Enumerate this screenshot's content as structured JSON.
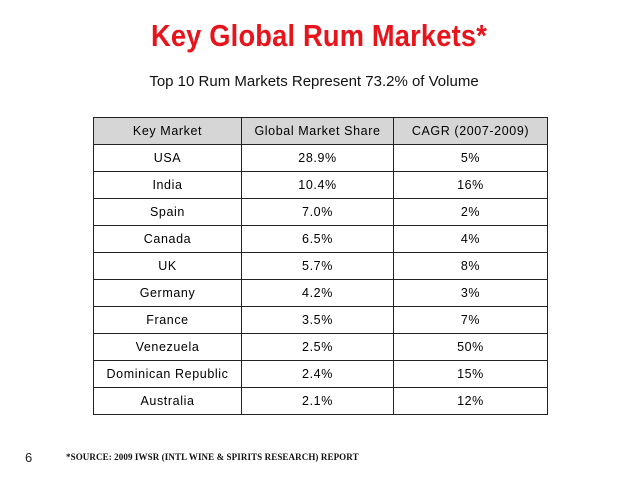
{
  "slide": {
    "title": "Key Global Rum Markets*",
    "subtitle": "Top 10 Rum Markets Represent 73.2% of Volume",
    "page_number": "6",
    "source": "*SOURCE: 2009 IWSR (INTL WINE & SPIRITS RESEARCH) REPORT",
    "title_color": "#e8141c",
    "header_bg": "#d6d6d6"
  },
  "table": {
    "headers": [
      "Key Market",
      "Global Market Share",
      "CAGR (2007-2009)"
    ],
    "rows": [
      [
        "USA",
        "28.9%",
        "5%"
      ],
      [
        "India",
        "10.4%",
        "16%"
      ],
      [
        "Spain",
        "7.0%",
        "2%"
      ],
      [
        "Canada",
        "6.5%",
        "4%"
      ],
      [
        "UK",
        "5.7%",
        "8%"
      ],
      [
        "Germany",
        "4.2%",
        "3%"
      ],
      [
        "France",
        "3.5%",
        "7%"
      ],
      [
        "Venezuela",
        "2.5%",
        "50%"
      ],
      [
        "Dominican Republic",
        "2.4%",
        "15%"
      ],
      [
        "Australia",
        "2.1%",
        "12%"
      ]
    ]
  },
  "chart_data": {
    "type": "table",
    "columns": [
      "Key Market",
      "Global Market Share",
      "CAGR (2007-2009)"
    ],
    "rows": [
      [
        "USA",
        "28.9%",
        "5%"
      ],
      [
        "India",
        "10.4%",
        "16%"
      ],
      [
        "Spain",
        "7.0%",
        "2%"
      ],
      [
        "Canada",
        "6.5%",
        "4%"
      ],
      [
        "UK",
        "5.7%",
        "8%"
      ],
      [
        "Germany",
        "4.2%",
        "3%"
      ],
      [
        "France",
        "3.5%",
        "7%"
      ],
      [
        "Venezuela",
        "2.5%",
        "50%"
      ],
      [
        "Dominican Republic",
        "2.4%",
        "15%"
      ],
      [
        "Australia",
        "2.1%",
        "12%"
      ]
    ]
  }
}
